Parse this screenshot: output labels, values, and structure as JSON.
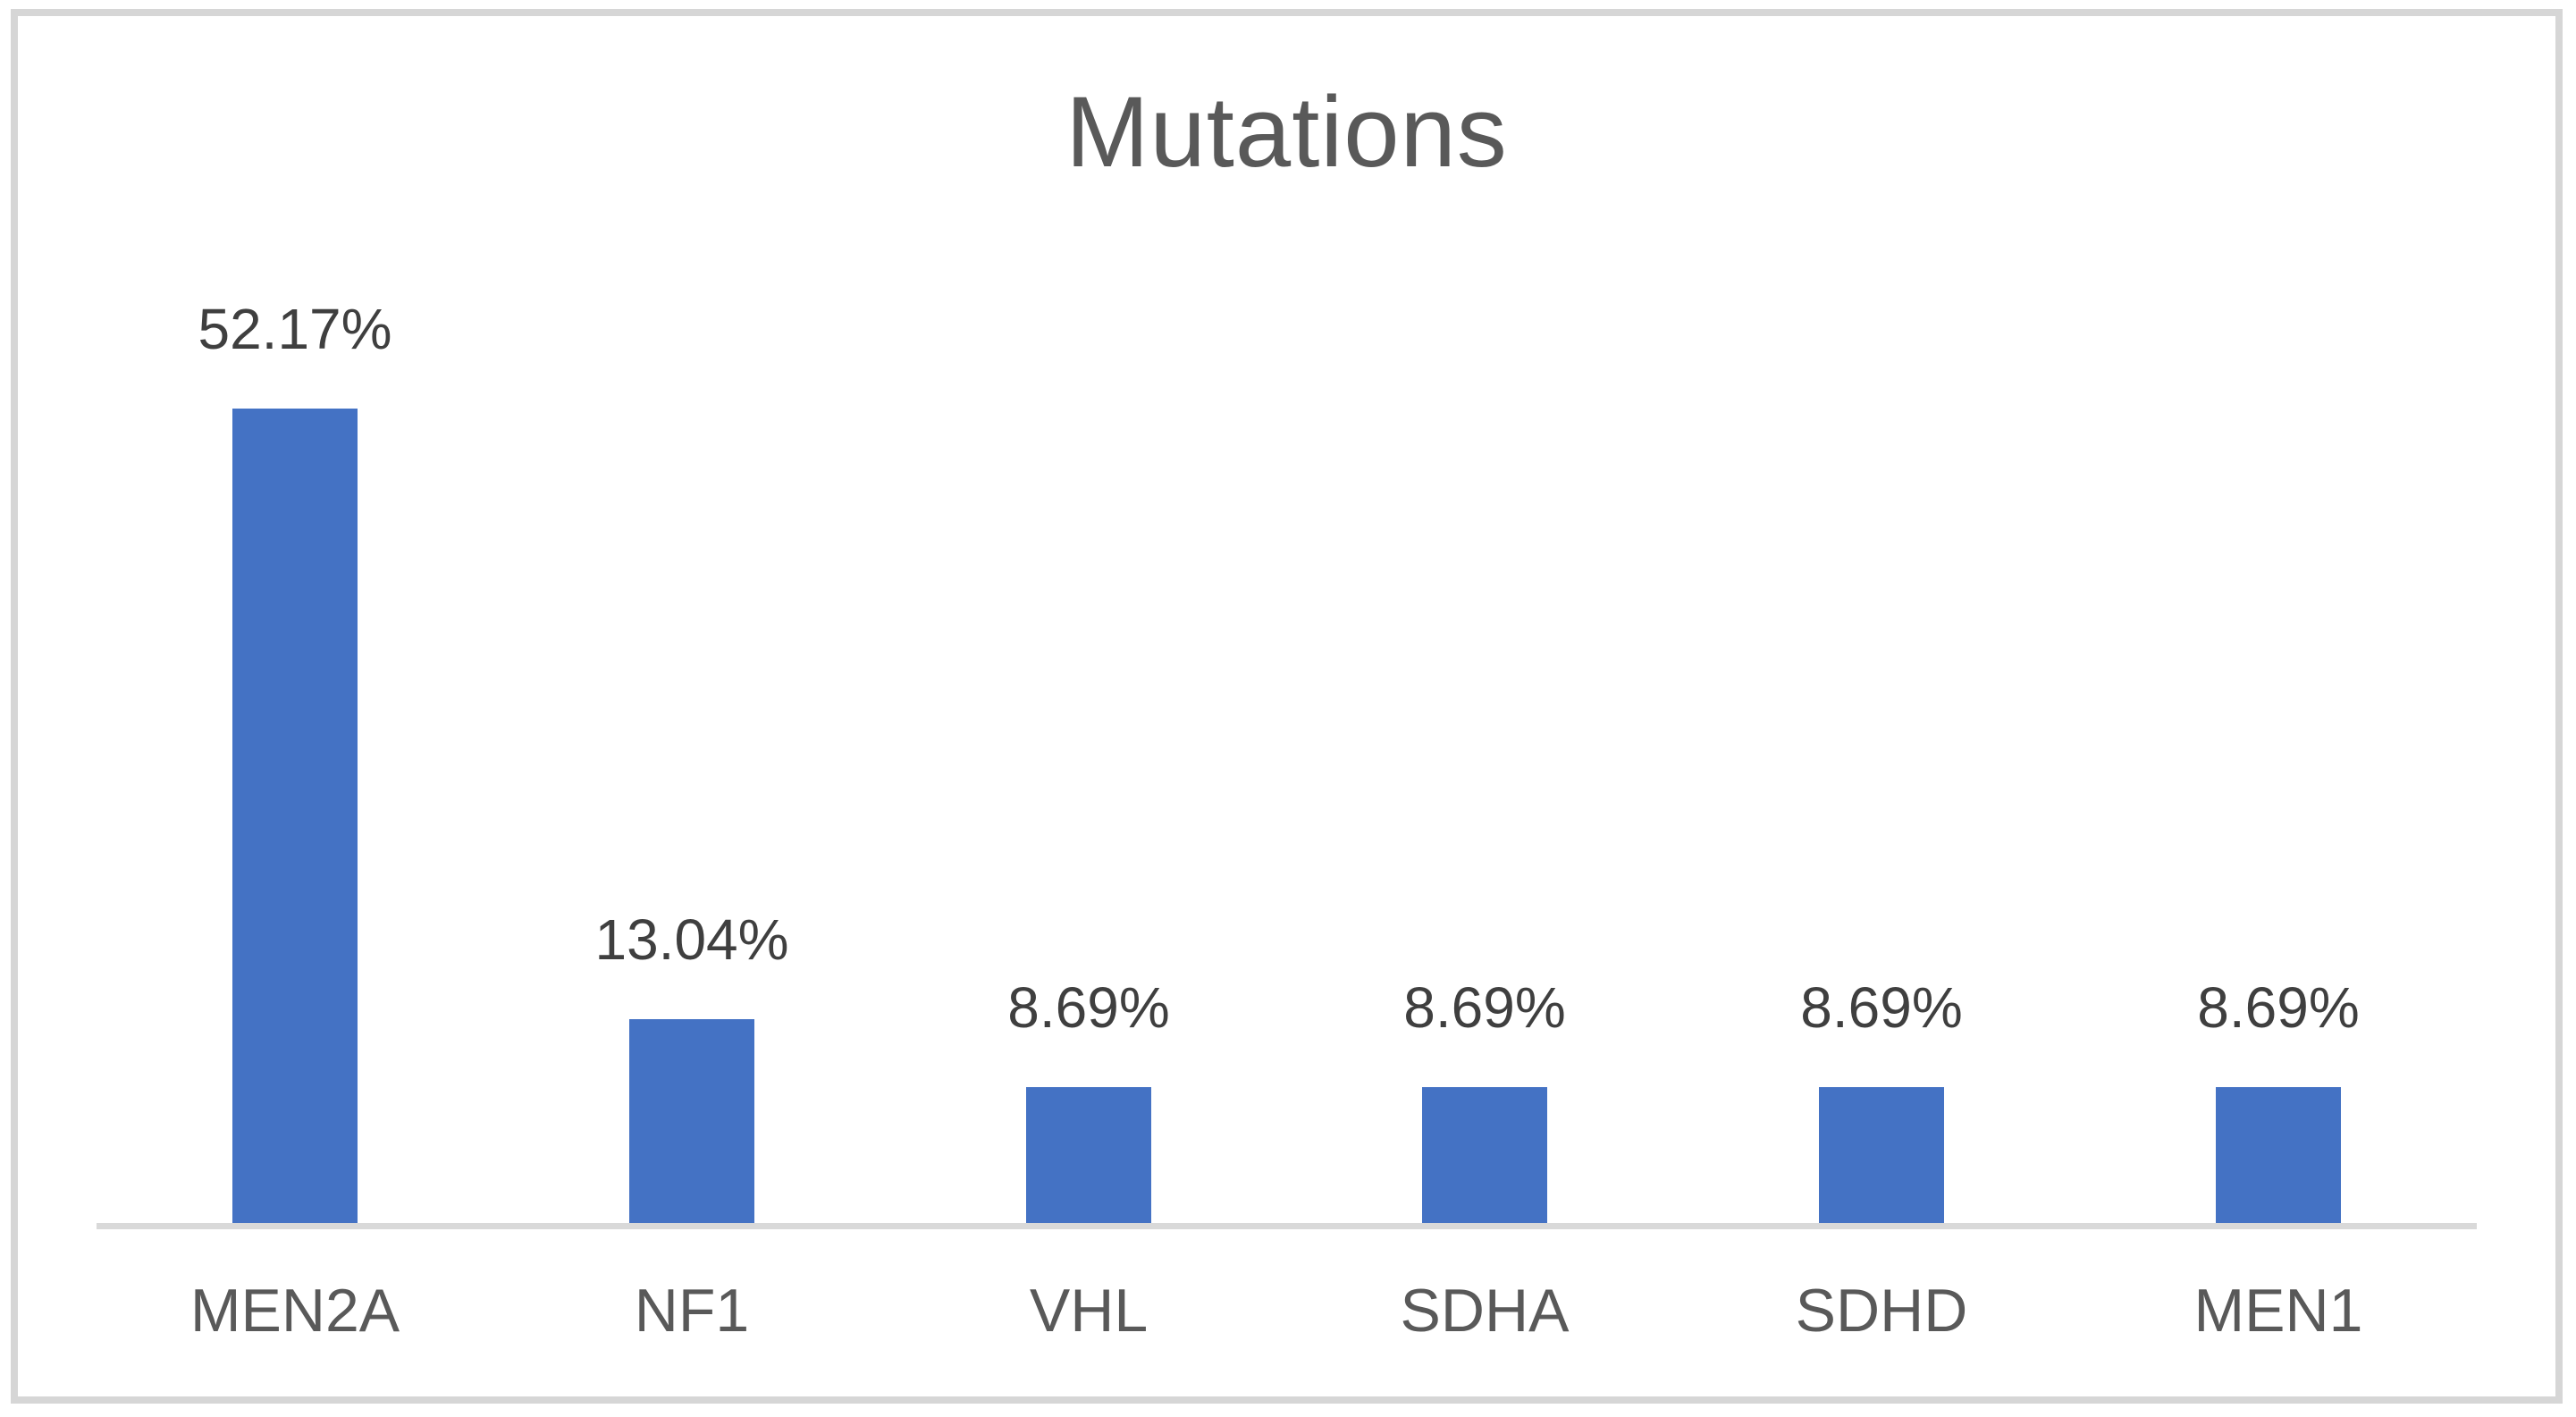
{
  "chart_data": {
    "type": "bar",
    "title": "Mutations",
    "categories": [
      "MEN2A",
      "NF1",
      "VHL",
      "SDHA",
      "SDHD",
      "MEN1"
    ],
    "values": [
      52.17,
      13.04,
      8.69,
      8.69,
      8.69,
      8.69
    ],
    "data_labels": [
      "52.17%",
      "13.04%",
      "8.69%",
      "8.69%",
      "8.69%",
      "8.69%"
    ],
    "series_name": "Mutations",
    "xlabel": "",
    "ylabel": "",
    "ylim": [
      0,
      55
    ],
    "grid": false,
    "legend_position": "none",
    "colors": {
      "bar": "#4472c4",
      "title_text": "#595959",
      "data_label_text": "#3f3f3f",
      "category_text": "#595959",
      "axis_line": "#d9d9d9",
      "chart_border": "#d6d6d6",
      "background": "#ffffff"
    }
  }
}
